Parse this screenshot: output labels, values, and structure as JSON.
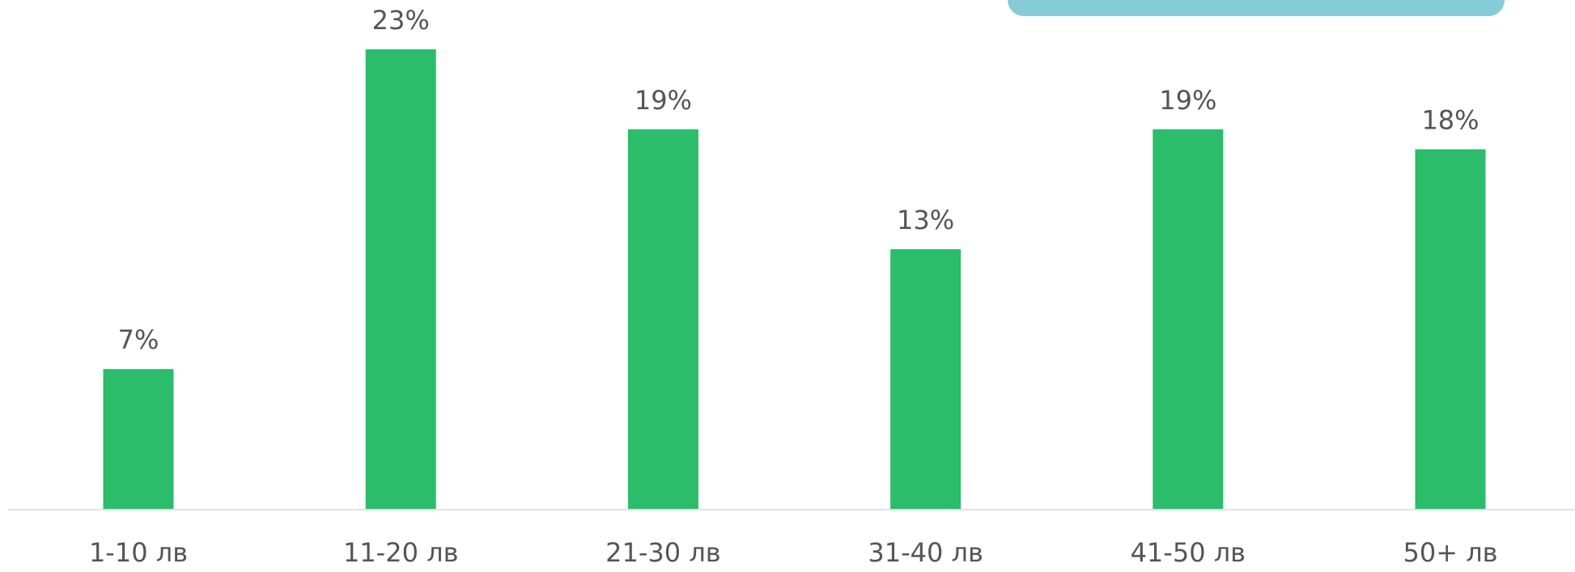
{
  "chart_data": {
    "type": "bar",
    "categories": [
      "1-10 лв",
      "11-20 лв",
      "21-30 лв",
      "31-40 лв",
      "41-50 лв",
      "50+ лв"
    ],
    "values": [
      7,
      23,
      19,
      13,
      19,
      18
    ],
    "value_labels": [
      "7%",
      "23%",
      "19%",
      "13%",
      "19%",
      "18%"
    ],
    "color": "#2bbd6a"
  }
}
